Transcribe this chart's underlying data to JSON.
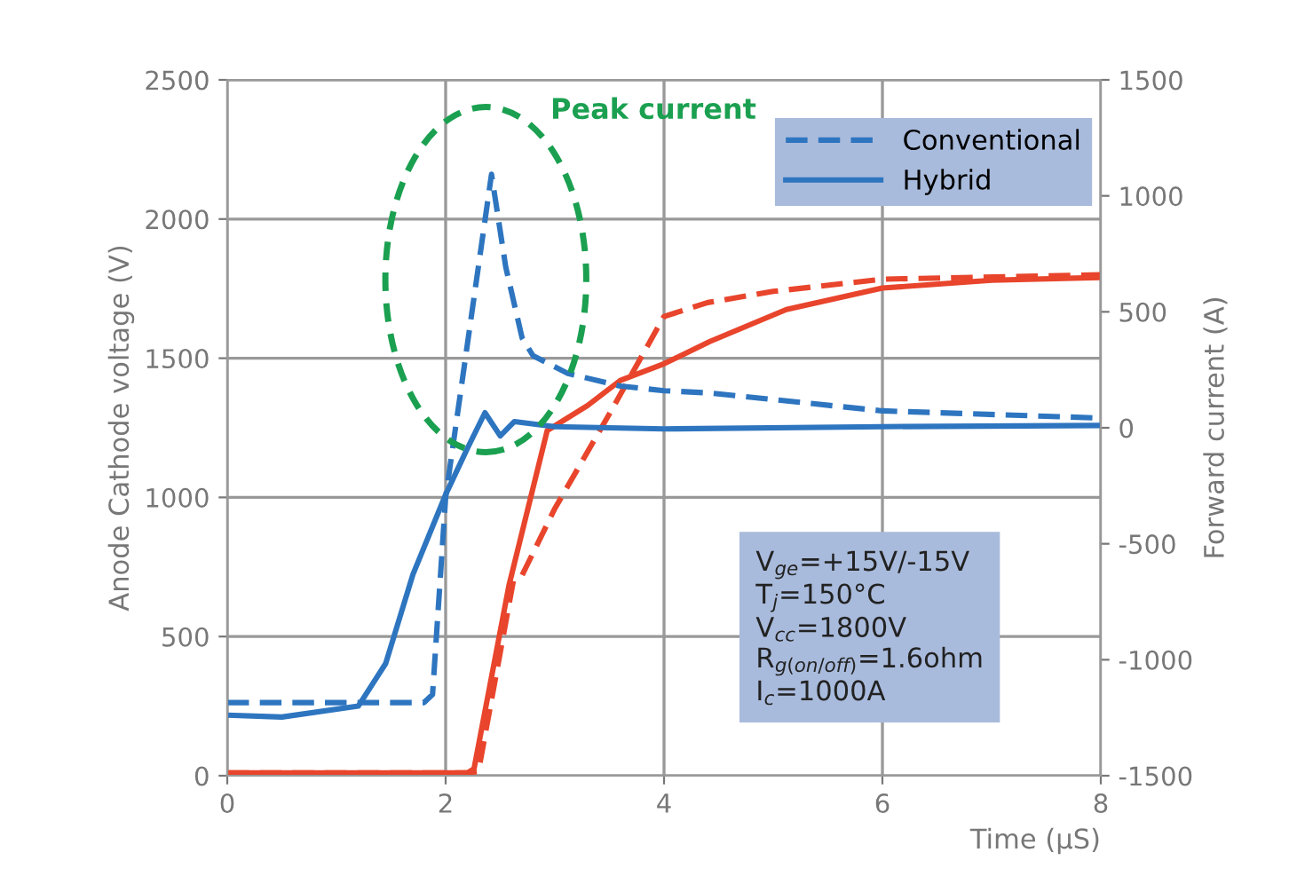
{
  "chart_data": {
    "type": "line",
    "xlabel": "Time (μS)",
    "ylabel": "Anode Cathode voltage (V)",
    "y2label": "Forward current (A)",
    "xlim": [
      0,
      8
    ],
    "xticks": [
      0,
      2,
      4,
      6,
      8
    ],
    "ylim": [
      0,
      2500
    ],
    "yticks": [
      0,
      500,
      1000,
      1500,
      2000,
      2500
    ],
    "y2lim": [
      -1500,
      1500
    ],
    "y2ticks": [
      -1500,
      -1000,
      -500,
      0,
      500,
      1000,
      1500
    ],
    "grid": true,
    "legend": "top right",
    "marker": "none",
    "series": [
      {
        "color": "#e8452c",
        "line_style": "dashed",
        "x": [
          0,
          2.2,
          2.3,
          2.62,
          2.7,
          3.0,
          3.5,
          4.0,
          4.4,
          5,
          6,
          8
        ],
        "values": [
          10,
          10,
          15,
          700,
          720,
          960,
          1300,
          1650,
          1700,
          1740,
          1784,
          1800
        ]
      },
      {
        "color": "#e8452c",
        "line_style": "solid",
        "x": [
          0,
          2.2,
          2.26,
          2.58,
          2.93,
          3.3,
          3.6,
          4.0,
          4.42,
          5.12,
          6,
          7,
          8
        ],
        "values": [
          10,
          10,
          25,
          684,
          1240,
          1330,
          1420,
          1480,
          1560,
          1675,
          1752,
          1780,
          1790
        ]
      },
      {
        "name": "Conventional",
        "color": "#2e75c0",
        "line_style": "dashed",
        "axis": "y2",
        "x": [
          0,
          1.8,
          1.88,
          2.0,
          2.42,
          2.55,
          2.7,
          2.8,
          3.12,
          3.6,
          4.0,
          4.42,
          6,
          8
        ],
        "values": [
          -1185,
          -1185,
          -1150,
          -300,
          1093,
          694,
          388,
          311,
          234,
          180,
          160,
          150,
          73,
          42
        ]
      },
      {
        "name": "Hybrid",
        "color": "#2e75c0",
        "line_style": "solid",
        "axis": "y2",
        "x": [
          0,
          0.5,
          1.2,
          1.45,
          1.7,
          2.0,
          2.2,
          2.36,
          2.5,
          2.63,
          3,
          4,
          6,
          8
        ],
        "values": [
          -1239,
          -1247,
          -1200,
          -1017,
          -633,
          -288,
          -88,
          65,
          -35,
          27,
          5,
          -5,
          5,
          10
        ]
      }
    ],
    "annotations": [
      "Peak current",
      "V$_{ge}$=+15V/-15V\nT$_{j}$=150°C\nV$_{cc}$=1800V\nR$_{g(on/off)}$=1.6ohm\nI$_{c}$=1000A"
    ]
  }
}
